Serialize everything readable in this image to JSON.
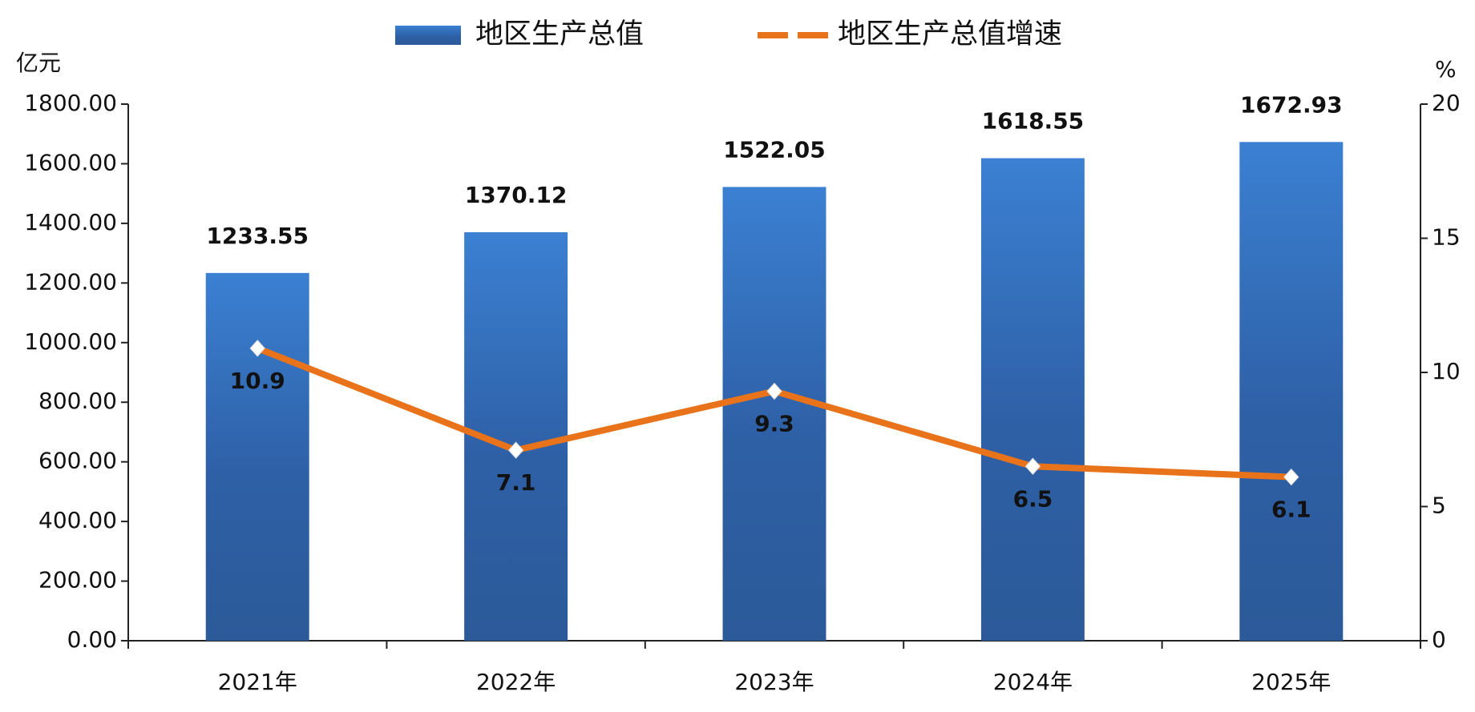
{
  "chart_data": {
    "type": "bar",
    "y_label": "亿元",
    "y2_label": "%",
    "categories": [
      "2021年",
      "2022年",
      "2023年",
      "2024年",
      "2025年"
    ],
    "series": [
      {
        "name": "地区生产总值",
        "type": "bar",
        "color": "#3070c0",
        "values": [
          1233.55,
          1370.12,
          1522.05,
          1618.55,
          1672.93
        ]
      },
      {
        "name": "地区生产总值增速",
        "type": "line",
        "axis": "y2",
        "color": "#e8731a",
        "values": [
          10.9,
          7.1,
          9.3,
          6.5,
          6.1
        ]
      }
    ],
    "ylim": [
      0,
      1800
    ],
    "yticks": [
      {
        "value": 0,
        "label": "0.00"
      },
      {
        "value": 200,
        "label": "200.00"
      },
      {
        "value": 400,
        "label": "400.00"
      },
      {
        "value": 600,
        "label": "600.00"
      },
      {
        "value": 800,
        "label": "800.00"
      },
      {
        "value": 1000,
        "label": "1000.00"
      },
      {
        "value": 1200,
        "label": "1200.00"
      },
      {
        "value": 1400,
        "label": "1400.00"
      },
      {
        "value": 1600,
        "label": "1600.00"
      },
      {
        "value": 1800,
        "label": "1800.00"
      }
    ],
    "y2lim": [
      0,
      20
    ],
    "y2ticks": [
      0,
      5,
      10,
      15,
      20
    ],
    "legend": "top"
  }
}
